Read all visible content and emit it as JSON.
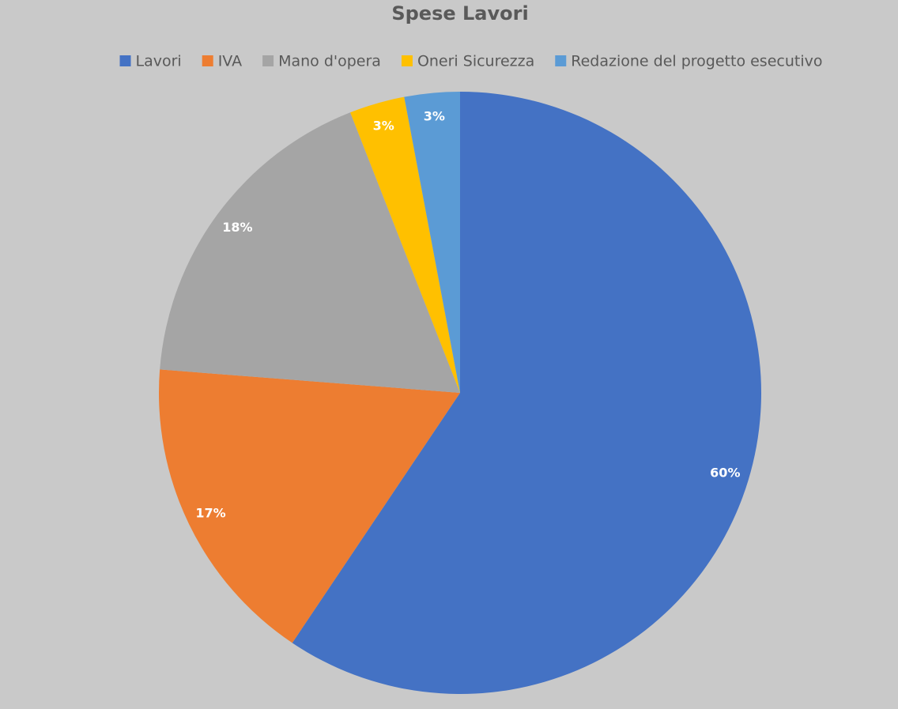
{
  "chart_data": {
    "type": "pie",
    "title": "Spese Lavori",
    "categories": [
      "Lavori",
      "IVA",
      "Mano d'opera",
      "Oneri Sicurezza",
      "Redazione del progetto esecutivo"
    ],
    "values": [
      60,
      17,
      18,
      3,
      3
    ],
    "value_labels": [
      "60%",
      "17%",
      "18%",
      "3%",
      "3%"
    ],
    "colors": [
      "#4472c4",
      "#ed7d31",
      "#a5a5a5",
      "#ffc000",
      "#5b9bd5"
    ],
    "legend": "top"
  }
}
